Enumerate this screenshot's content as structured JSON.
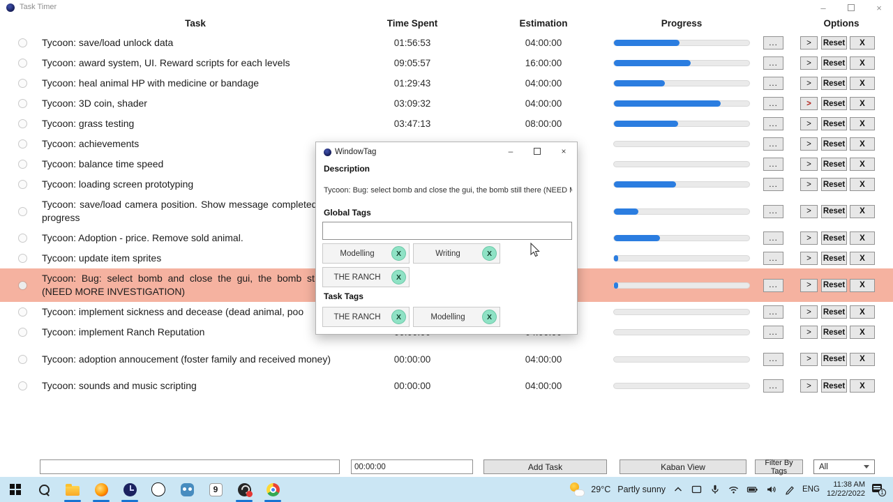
{
  "window": {
    "title": "Task Timer",
    "controls": [
      "minimize-icon",
      "maximize-icon",
      "close-icon"
    ]
  },
  "table": {
    "headers": {
      "task": "Task",
      "time_spent": "Time Spent",
      "estimation": "Estimation",
      "progress": "Progress",
      "options": "Options"
    }
  },
  "options_buttons": {
    "more": "...",
    "start": ">",
    "reset": "Reset",
    "remove": "X"
  },
  "colors": {
    "progress_blue": "#2b7de0",
    "highlight_salmon": "#f5b2a0",
    "tag_green": "#8fe2c5",
    "taskbar_blue": "#cbe6f4",
    "active_indicator_blue": "#1673d2"
  },
  "tasks": [
    {
      "text": "Tycoon: save/load unlock data",
      "time": "01:56:53",
      "est": "04:00:00",
      "progress": 48.7,
      "two_line": false,
      "highlight": false,
      "active_timer": false
    },
    {
      "text": "Tycoon: award system, UI. Reward scripts for each levels",
      "time": "09:05:57",
      "est": "16:00:00",
      "progress": 56.9,
      "two_line": false,
      "highlight": false,
      "active_timer": false
    },
    {
      "text": "Tycoon: heal animal HP with medicine or bandage",
      "time": "01:29:43",
      "est": "04:00:00",
      "progress": 37.4,
      "two_line": false,
      "highlight": false,
      "active_timer": false
    },
    {
      "text": "Tycoon: 3D coin, shader",
      "time": "03:09:32",
      "est": "04:00:00",
      "progress": 79,
      "two_line": false,
      "highlight": false,
      "active_timer": true
    },
    {
      "text": "Tycoon: grass testing",
      "time": "03:47:13",
      "est": "08:00:00",
      "progress": 47.3,
      "two_line": false,
      "highlight": false,
      "active_timer": false
    },
    {
      "text": "Tycoon: achievements",
      "time": "",
      "est": "",
      "progress": 0,
      "two_line": false,
      "highlight": false,
      "active_timer": false
    },
    {
      "text": "Tycoon: balance time speed",
      "time": "",
      "est": "",
      "progress": 0,
      "two_line": false,
      "highlight": false,
      "active_timer": false
    },
    {
      "text": "Tycoon: loading screen prototyping",
      "time": "",
      "est": "",
      "progress": 46,
      "two_line": false,
      "highlight": false,
      "active_timer": false
    },
    {
      "text": "Tycoon: save/load camera position. Show message completed saving progress",
      "time": "",
      "est": "",
      "progress": 18,
      "two_line": true,
      "highlight": false,
      "active_timer": false
    },
    {
      "text": "Tycoon: Adoption - price. Remove sold animal.",
      "time": "",
      "est": "",
      "progress": 34,
      "two_line": false,
      "highlight": false,
      "active_timer": false
    },
    {
      "text": "Tycoon: update item sprites",
      "time": "",
      "est": "",
      "progress": 3,
      "two_line": false,
      "highlight": false,
      "active_timer": false
    },
    {
      "text": "Tycoon: Bug: select bomb and close the gui, the bomb still there (NEED MORE INVESTIGATION)",
      "time": "",
      "est": "",
      "progress": 2,
      "two_line": true,
      "highlight": true,
      "active_timer": false
    },
    {
      "text": "Tycoon: implement sickness and decease (dead animal, poo",
      "time": "",
      "est": "",
      "progress": 0,
      "two_line": false,
      "highlight": false,
      "active_timer": false
    },
    {
      "text": "Tycoon: implement Ranch Reputation",
      "time": "00:00:00",
      "est": "04:00:00",
      "progress": 0,
      "two_line": false,
      "highlight": false,
      "active_timer": false
    },
    {
      "text": "Tycoon: adoption annoucement (foster family and received money)",
      "time": "00:00:00",
      "est": "04:00:00",
      "progress": 0,
      "two_line": true,
      "highlight": false,
      "active_timer": false
    },
    {
      "text": "Tycoon: sounds and music scripting",
      "time": "00:00:00",
      "est": "04:00:00",
      "progress": 0,
      "two_line": false,
      "highlight": false,
      "active_timer": false
    }
  ],
  "dialog": {
    "title": "WindowTag",
    "controls": [
      "minimize-icon",
      "maximize-icon",
      "close-icon"
    ],
    "description_label": "Description",
    "description_text": "Tycoon: Bug: select bomb and close the gui, the bomb still there (NEED MORE I",
    "global_tags_label": "Global Tags",
    "tag_input_value": "",
    "global_tags": [
      "Modelling",
      "Writing",
      "THE RANCH"
    ],
    "task_tags_label": "Task Tags",
    "task_tags": [
      "THE RANCH",
      "Modelling"
    ],
    "chip_close": "X"
  },
  "bottom_bar": {
    "new_task_value": "",
    "time_value": "00:00:00",
    "add_task_label": "Add Task",
    "kaban_label": "Kaban View",
    "filter_label": "Filter By Tags",
    "filter_value": "All"
  },
  "taskbar": {
    "apps": [
      "start-icon",
      "search-icon",
      "file-explorer-icon",
      "firefox-icon",
      "task-timer-icon",
      "paint-blob-icon",
      "godot-icon",
      "clip-studio-icon",
      "obs-icon",
      "chrome-icon"
    ],
    "active_apps": [
      "file-explorer-icon",
      "firefox-icon",
      "task-timer-icon",
      "obs-icon",
      "chrome-icon"
    ],
    "weather_temp": "29°C",
    "weather_desc": "Partly sunny",
    "tray_icons": [
      "chevron-up-icon",
      "tablet-icon",
      "microphone-icon",
      "wifi-icon",
      "battery-icon",
      "volume-icon",
      "pen-icon"
    ],
    "language": "ENG",
    "clock_time": "11:38 AM",
    "clock_date": "12/22/2022",
    "notification_count": "1"
  }
}
